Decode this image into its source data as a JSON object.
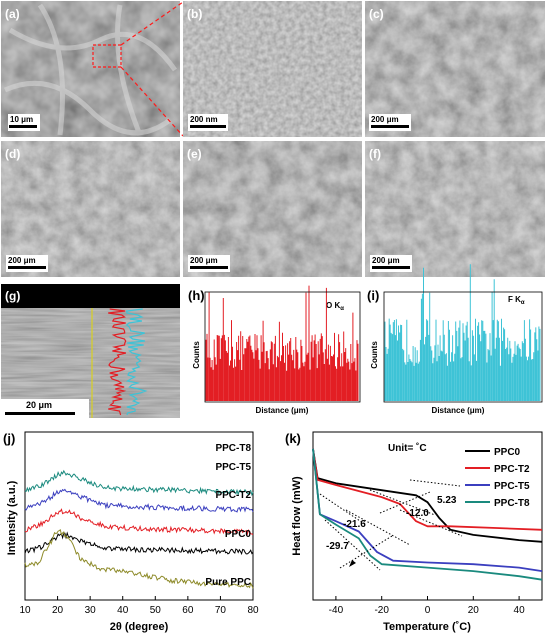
{
  "panels": {
    "a": {
      "label": "(a)",
      "scale": "10 μm"
    },
    "b": {
      "label": "(b)",
      "scale": "200 nm"
    },
    "c": {
      "label": "(c)",
      "scale": "200 μm"
    },
    "d": {
      "label": "(d)",
      "scale": "200 μm"
    },
    "e": {
      "label": "(e)",
      "scale": "200 μm"
    },
    "f": {
      "label": "(f)",
      "scale": "200 μm"
    },
    "g": {
      "label": "(g)",
      "scale": "20 μm"
    },
    "h": {
      "label": "(h)",
      "element": "O K",
      "subscript": "α",
      "ylabel": "Counts",
      "xlabel": "Distance (μm)",
      "color": "#e31e24"
    },
    "i": {
      "label": "(i)",
      "element": "F K",
      "subscript": "α",
      "ylabel": "Counts",
      "xlabel": "Distance (μm)",
      "color": "#3ec3d6"
    },
    "j": {
      "label": "(j)"
    },
    "k": {
      "label": "(k)",
      "unit_note": "Unit= ˚C"
    }
  },
  "chart_data": [
    {
      "type": "line",
      "panel": "j",
      "xlabel": "2θ (degree)",
      "ylabel": "Intensity (a.u.)",
      "xlim": [
        10,
        80
      ],
      "xticks": [
        "10",
        "20",
        "30",
        "40",
        "50",
        "60",
        "70",
        "80"
      ],
      "series": [
        {
          "name": "PPC-T8",
          "color": "#1a8a7e",
          "offset": 4.2,
          "shape": [
            [
              10,
              0.2
            ],
            [
              15,
              0.4
            ],
            [
              20,
              0.9
            ],
            [
              23,
              1.0
            ],
            [
              27,
              0.7
            ],
            [
              35,
              0.3
            ],
            [
              45,
              0.25
            ],
            [
              80,
              0.1
            ]
          ]
        },
        {
          "name": "PPC-T5",
          "color": "#3b3fbf",
          "offset": 3.4,
          "shape": [
            [
              10,
              0.2
            ],
            [
              15,
              0.4
            ],
            [
              20,
              0.9
            ],
            [
              23,
              1.0
            ],
            [
              27,
              0.7
            ],
            [
              35,
              0.3
            ],
            [
              45,
              0.25
            ],
            [
              80,
              0.1
            ]
          ]
        },
        {
          "name": "PPC-T2",
          "color": "#e31e24",
          "offset": 2.4,
          "shape": [
            [
              10,
              0.2
            ],
            [
              15,
              0.45
            ],
            [
              20,
              1.0
            ],
            [
              23,
              1.05
            ],
            [
              27,
              0.75
            ],
            [
              35,
              0.35
            ],
            [
              45,
              0.25
            ],
            [
              80,
              0.1
            ]
          ]
        },
        {
          "name": "PPC0",
          "color": "#000000",
          "offset": 1.5,
          "shape": [
            [
              10,
              0.1
            ],
            [
              15,
              0.3
            ],
            [
              20,
              0.8
            ],
            [
              23,
              0.85
            ],
            [
              27,
              0.6
            ],
            [
              35,
              0.25
            ],
            [
              45,
              0.2
            ],
            [
              80,
              0.1
            ]
          ]
        },
        {
          "name": "Pure PPC",
          "color": "#8e8b2a",
          "offset": 0.0,
          "shape": [
            [
              10,
              1.0
            ],
            [
              14,
              1.1
            ],
            [
              17,
              1.8
            ],
            [
              20,
              2.6
            ],
            [
              23,
              2.3
            ],
            [
              27,
              1.3
            ],
            [
              33,
              0.8
            ],
            [
              40,
              0.75
            ],
            [
              46,
              0.55
            ],
            [
              55,
              0.3
            ],
            [
              65,
              0.15
            ],
            [
              80,
              0.05
            ]
          ]
        }
      ]
    },
    {
      "type": "line",
      "panel": "k",
      "xlabel": "Temperature (˚C)",
      "ylabel": "Heat flow (mW)",
      "xlim": [
        -50,
        50
      ],
      "xticks": [
        "-40",
        "-20",
        "0",
        "20",
        "40"
      ],
      "legend": "top-right",
      "series": [
        {
          "name": "PPC0",
          "color": "#000000",
          "points": [
            [
              -50,
              3.1
            ],
            [
              -48,
              2.25
            ],
            [
              -40,
              2.1
            ],
            [
              -20,
              1.9
            ],
            [
              -5,
              1.75
            ],
            [
              0,
              1.55
            ],
            [
              5,
              1.1
            ],
            [
              10,
              0.75
            ],
            [
              20,
              0.6
            ],
            [
              40,
              0.45
            ],
            [
              50,
              0.4
            ]
          ]
        },
        {
          "name": "PPC-T2",
          "color": "#e31e24",
          "points": [
            [
              -50,
              3.1
            ],
            [
              -48,
              2.2
            ],
            [
              -40,
              2.05
            ],
            [
              -20,
              1.7
            ],
            [
              -12,
              1.5
            ],
            [
              -5,
              1.0
            ],
            [
              0,
              0.85
            ],
            [
              10,
              0.85
            ],
            [
              30,
              0.8
            ],
            [
              50,
              0.75
            ]
          ]
        },
        {
          "name": "PPC-T5",
          "color": "#3b3fbf",
          "points": [
            [
              -50,
              3.1
            ],
            [
              -47,
              1.2
            ],
            [
              -40,
              1.0
            ],
            [
              -30,
              0.7
            ],
            [
              -22,
              0.1
            ],
            [
              -15,
              -0.15
            ],
            [
              0,
              -0.2
            ],
            [
              20,
              -0.25
            ],
            [
              40,
              -0.35
            ],
            [
              50,
              -0.45
            ]
          ]
        },
        {
          "name": "PPC-T8",
          "color": "#1a8a7e",
          "points": [
            [
              -50,
              3.1
            ],
            [
              -47,
              1.2
            ],
            [
              -40,
              0.9
            ],
            [
              -30,
              0.5
            ],
            [
              -25,
              0.0
            ],
            [
              -20,
              -0.25
            ],
            [
              0,
              -0.35
            ],
            [
              20,
              -0.45
            ],
            [
              40,
              -0.6
            ],
            [
              50,
              -0.7
            ]
          ]
        }
      ],
      "annotations": [
        "5.23",
        "-12.0",
        "-21.6",
        "-29.7"
      ]
    }
  ]
}
